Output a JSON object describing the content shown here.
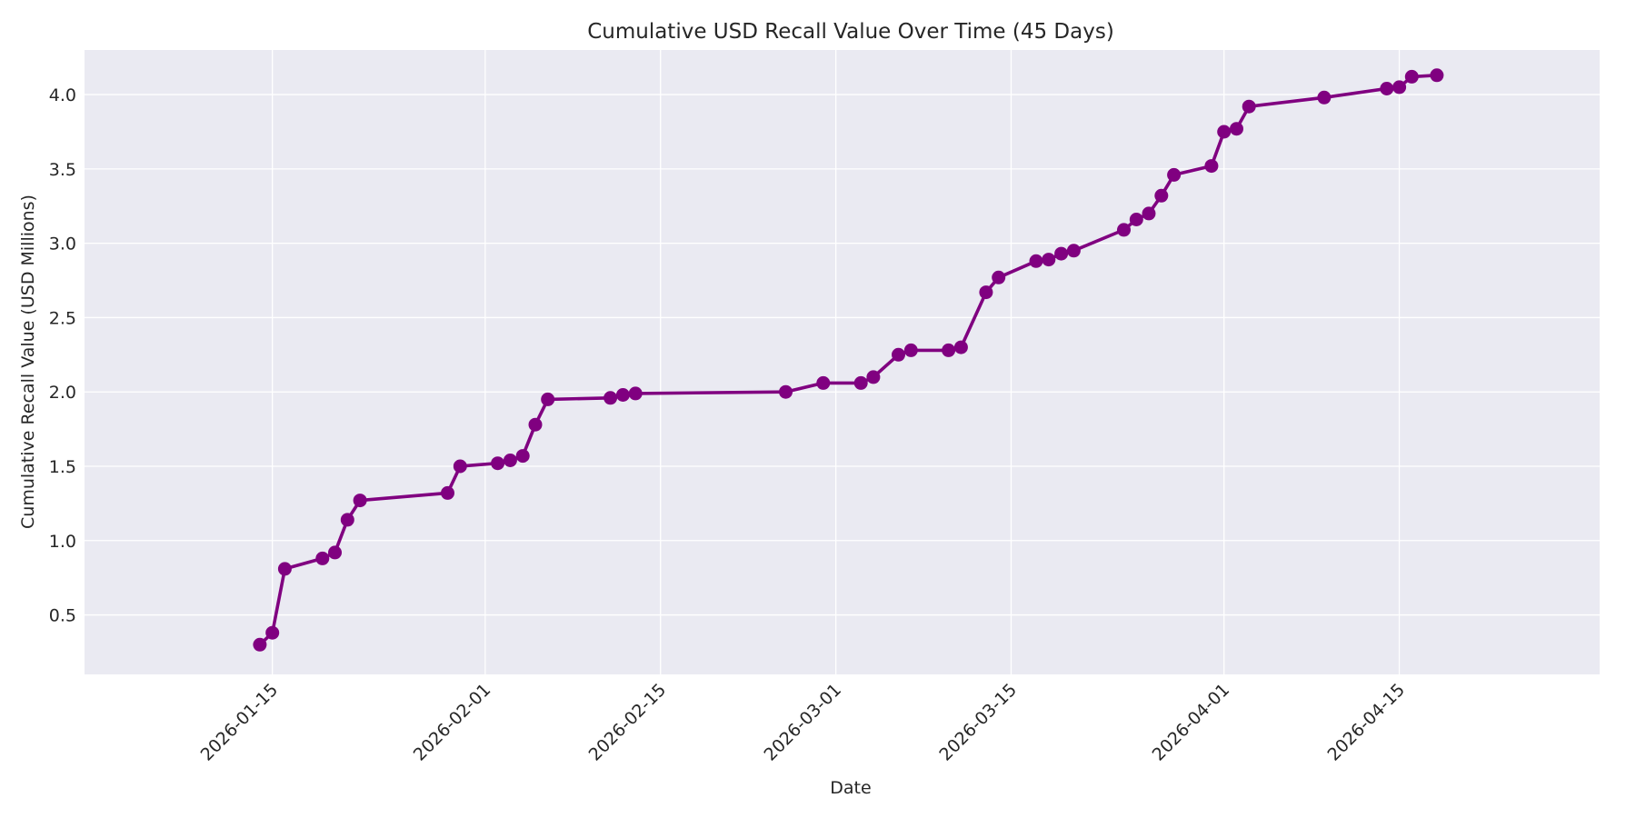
{
  "chart_data": {
    "type": "line",
    "title": "Cumulative USD Recall Value Over Time (45 Days)",
    "xlabel": "Date",
    "ylabel": "Cumulative Recall Value (USD Millions)",
    "x_ticks": [
      "2026-01-15",
      "2026-02-01",
      "2026-02-15",
      "2026-03-01",
      "2026-03-15",
      "2026-04-01",
      "2026-04-15"
    ],
    "y_ticks": [
      0.5,
      1.0,
      1.5,
      2.0,
      2.5,
      3.0,
      3.5,
      4.0
    ],
    "y_tick_labels": [
      "0.5",
      "1.0",
      "1.5",
      "2.0",
      "2.5",
      "3.0",
      "3.5",
      "4.0"
    ],
    "xlim": [
      "2025-12-31",
      "2026-05-01"
    ],
    "ylim": [
      0.1,
      4.3
    ],
    "grid": true,
    "colors": {
      "line": "#800080",
      "plot_background": "#eaeaf2",
      "grid": "#ffffff",
      "text": "#262626"
    },
    "series": [
      {
        "x": [
          "2026-01-14",
          "2026-01-15",
          "2026-01-16",
          "2026-01-19",
          "2026-01-20",
          "2026-01-21",
          "2026-01-22",
          "2026-01-29",
          "2026-01-30",
          "2026-02-02",
          "2026-02-03",
          "2026-02-04",
          "2026-02-05",
          "2026-02-06",
          "2026-02-11",
          "2026-02-12",
          "2026-02-13",
          "2026-02-25",
          "2026-02-28",
          "2026-03-03",
          "2026-03-04",
          "2026-03-06",
          "2026-03-07",
          "2026-03-10",
          "2026-03-11",
          "2026-03-13",
          "2026-03-14",
          "2026-03-17",
          "2026-03-18",
          "2026-03-19",
          "2026-03-20",
          "2026-03-24",
          "2026-03-25",
          "2026-03-26",
          "2026-03-27",
          "2026-03-28",
          "2026-03-31",
          "2026-04-01",
          "2026-04-02",
          "2026-04-03",
          "2026-04-09",
          "2026-04-14",
          "2026-04-15",
          "2026-04-16",
          "2026-04-18"
        ],
        "values": [
          0.3,
          0.38,
          0.81,
          0.88,
          0.92,
          1.14,
          1.27,
          1.32,
          1.5,
          1.52,
          1.54,
          1.57,
          1.78,
          1.95,
          1.96,
          1.98,
          1.99,
          2.0,
          2.06,
          2.06,
          2.1,
          2.25,
          2.28,
          2.28,
          2.3,
          2.67,
          2.77,
          2.88,
          2.89,
          2.93,
          2.95,
          3.09,
          3.16,
          3.2,
          3.32,
          3.46,
          3.52,
          3.75,
          3.77,
          3.92,
          3.98,
          4.04,
          4.05,
          4.12,
          4.13
        ]
      }
    ]
  }
}
